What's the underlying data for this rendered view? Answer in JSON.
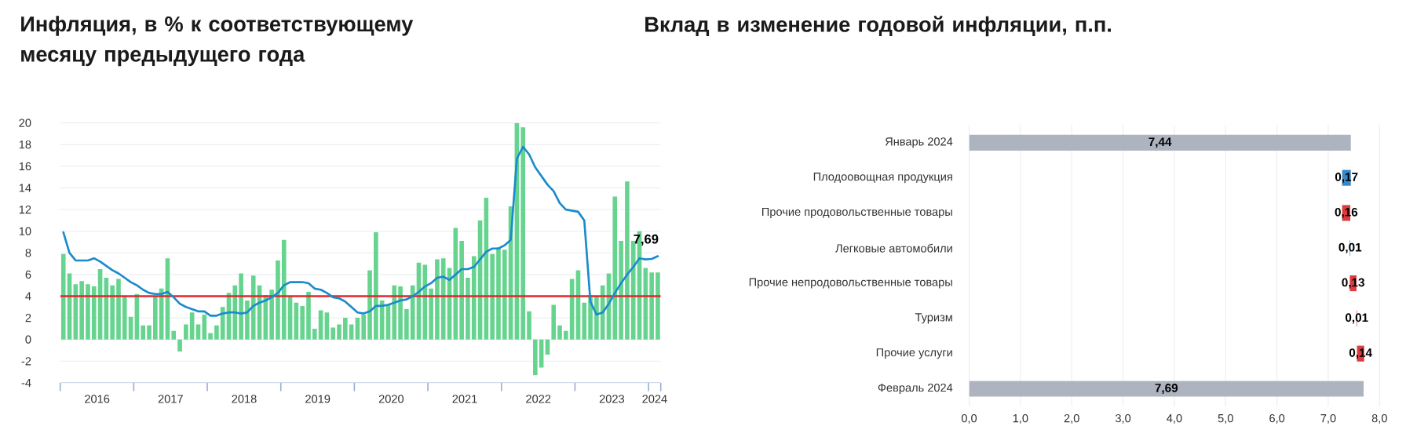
{
  "chart_data": [
    {
      "type": "bar",
      "title": "Инфляция, в % к соответствующему месяцу предыдущего года",
      "x": [
        "2016-01",
        "2016-02",
        "2016-03",
        "2016-04",
        "2016-05",
        "2016-06",
        "2016-07",
        "2016-08",
        "2016-09",
        "2016-10",
        "2016-11",
        "2016-12",
        "2017-01",
        "2017-02",
        "2017-03",
        "2017-04",
        "2017-05",
        "2017-06",
        "2017-07",
        "2017-08",
        "2017-09",
        "2017-10",
        "2017-11",
        "2017-12",
        "2018-01",
        "2018-02",
        "2018-03",
        "2018-04",
        "2018-05",
        "2018-06",
        "2018-07",
        "2018-08",
        "2018-09",
        "2018-10",
        "2018-11",
        "2018-12",
        "2019-01",
        "2019-02",
        "2019-03",
        "2019-04",
        "2019-05",
        "2019-06",
        "2019-07",
        "2019-08",
        "2019-09",
        "2019-10",
        "2019-11",
        "2019-12",
        "2020-01",
        "2020-02",
        "2020-03",
        "2020-04",
        "2020-05",
        "2020-06",
        "2020-07",
        "2020-08",
        "2020-09",
        "2020-10",
        "2020-11",
        "2020-12",
        "2021-01",
        "2021-02",
        "2021-03",
        "2021-04",
        "2021-05",
        "2021-06",
        "2021-07",
        "2021-08",
        "2021-09",
        "2021-10",
        "2021-11",
        "2021-12",
        "2022-01",
        "2022-02",
        "2022-03",
        "2022-04",
        "2022-05",
        "2022-06",
        "2022-07",
        "2022-08",
        "2022-09",
        "2022-10",
        "2022-11",
        "2022-12",
        "2023-01",
        "2023-02",
        "2023-03",
        "2023-04",
        "2023-05",
        "2023-06",
        "2023-07",
        "2023-08",
        "2023-09",
        "2023-10",
        "2023-11",
        "2023-12",
        "2024-01",
        "2024-02"
      ],
      "series": [
        {
          "type": "bar",
          "color": "#66d48f",
          "values": [
            7.9,
            6.1,
            5.1,
            5.4,
            5.1,
            4.9,
            6.5,
            5.7,
            5.0,
            5.6,
            4.0,
            2.1,
            4.2,
            1.3,
            1.3,
            4.0,
            4.7,
            7.5,
            0.8,
            -1.1,
            1.4,
            2.5,
            1.4,
            2.3,
            0.6,
            1.3,
            3.0,
            4.3,
            5.0,
            6.1,
            3.6,
            5.9,
            5.0,
            4.1,
            4.6,
            7.3,
            9.2,
            4.0,
            3.4,
            3.1,
            4.4,
            1.0,
            2.7,
            2.5,
            1.1,
            1.4,
            2.0,
            1.4,
            2.0,
            2.3,
            6.4,
            9.9,
            3.6,
            3.2,
            5.0,
            4.9,
            2.8,
            5.0,
            7.1,
            6.9,
            4.7,
            7.4,
            7.5,
            6.6,
            10.3,
            9.1,
            5.7,
            7.7,
            11.0,
            13.1,
            7.9,
            8.5,
            8.3,
            12.3,
            20.0,
            19.6,
            2.6,
            -3.3,
            -2.6,
            -1.4,
            3.2,
            1.3,
            0.8,
            5.6,
            6.4,
            3.4,
            4.1,
            4.0,
            5.0,
            6.1,
            13.2,
            9.1,
            14.6,
            9.1,
            10.0,
            6.6,
            6.2,
            6.2
          ]
        },
        {
          "type": "line",
          "color": "#1a8bcb",
          "values": [
            9.9,
            8.0,
            7.3,
            7.3,
            7.3,
            7.5,
            7.2,
            6.8,
            6.4,
            6.1,
            5.7,
            5.3,
            5.0,
            4.6,
            4.3,
            4.2,
            4.2,
            4.4,
            3.9,
            3.3,
            3.0,
            2.8,
            2.6,
            2.6,
            2.2,
            2.2,
            2.4,
            2.5,
            2.5,
            2.4,
            2.5,
            3.1,
            3.4,
            3.6,
            3.9,
            4.3,
            5.0,
            5.3,
            5.3,
            5.3,
            5.2,
            4.7,
            4.6,
            4.3,
            3.9,
            3.8,
            3.5,
            3.0,
            2.5,
            2.4,
            2.6,
            3.1,
            3.1,
            3.2,
            3.4,
            3.6,
            3.7,
            4.0,
            4.4,
            4.9,
            5.2,
            5.7,
            5.8,
            5.5,
            6.0,
            6.5,
            6.5,
            6.7,
            7.4,
            8.1,
            8.4,
            8.4,
            8.7,
            9.2,
            16.7,
            17.8,
            17.1,
            15.9,
            15.1,
            14.3,
            13.7,
            12.6,
            12.0,
            11.9,
            11.8,
            11.0,
            3.5,
            2.3,
            2.5,
            3.3,
            4.3,
            5.2,
            6.0,
            6.7,
            7.5,
            7.4,
            7.44,
            7.69
          ]
        }
      ],
      "xlim": [
        "2015-12-16",
        "2024-02-15"
      ],
      "xticks": [
        {
          "value": "2015-12-16",
          "label": null
        },
        {
          "value": "2016-06-16",
          "label": "2016"
        },
        {
          "value": "2016-12-16",
          "label": null
        },
        {
          "value": "2017-06-16",
          "label": "2017"
        },
        {
          "value": "2017-12-16",
          "label": null
        },
        {
          "value": "2018-06-16",
          "label": "2018"
        },
        {
          "value": "2018-12-16",
          "label": null
        },
        {
          "value": "2019-06-16",
          "label": "2019"
        },
        {
          "value": "2019-12-16",
          "label": null
        },
        {
          "value": "2020-06-16",
          "label": "2020"
        },
        {
          "value": "2020-12-16",
          "label": null
        },
        {
          "value": "2021-06-16",
          "label": "2021"
        },
        {
          "value": "2021-12-16",
          "label": null
        },
        {
          "value": "2022-06-16",
          "label": "2022"
        },
        {
          "value": "2022-12-16",
          "label": null
        },
        {
          "value": "2023-06-16",
          "label": "2023"
        },
        {
          "value": "2023-12-16",
          "label": null
        },
        {
          "value": "2024-01-16",
          "label": "2024"
        },
        {
          "value": "2024-02-15",
          "label": null
        }
      ],
      "ylim": [
        -4,
        20
      ],
      "yticks": [
        -4,
        -2,
        0,
        2,
        4,
        6,
        8,
        10,
        12,
        14,
        16,
        18,
        20
      ],
      "grid": "y",
      "ref_lines": [
        {
          "axis": "y",
          "value": 4,
          "color": "#e3262e"
        }
      ],
      "annotations": [
        {
          "text": "7,69",
          "x": "2024-02",
          "y": 7.69
        }
      ]
    },
    {
      "type": "bar",
      "orientation": "horizontal",
      "title": "Вклад в изменение годовой инфляции, п.п.",
      "categories": [
        "Январь 2024",
        "Плодоовощная продукция",
        "Прочие продовольственные товары",
        "Легковые автомобили",
        "Прочие непродовольственные товары",
        "Туризм",
        "Прочие услуги",
        "Февраль 2024"
      ],
      "values": [
        7.44,
        -0.17,
        0.16,
        -0.01,
        0.13,
        0.01,
        0.14,
        7.69
      ],
      "base": [
        0,
        7.44,
        7.27,
        7.43,
        7.42,
        7.55,
        7.56,
        0
      ],
      "colors": [
        "#adb4c0",
        "#3a87c8",
        "#dc3b3f",
        "#3a87c8",
        "#dc3b3f",
        "#dc3b3f",
        "#dc3b3f",
        "#adb4c0"
      ],
      "value_labels": [
        "7,44",
        "0,17",
        "0,16",
        "0,01",
        "0,13",
        "0,01",
        "0,14",
        "7,69"
      ],
      "xlim": [
        0,
        8
      ],
      "xticks": [
        {
          "value": 0,
          "label": "0,0"
        },
        {
          "value": 1,
          "label": "1,0"
        },
        {
          "value": 2,
          "label": "2,0"
        },
        {
          "value": 3,
          "label": "3,0"
        },
        {
          "value": 4,
          "label": "4,0"
        },
        {
          "value": 5,
          "label": "5,0"
        },
        {
          "value": 6,
          "label": "6,0"
        },
        {
          "value": 7,
          "label": "7,0"
        },
        {
          "value": 8,
          "label": "8,0"
        }
      ],
      "grid": "x"
    }
  ]
}
